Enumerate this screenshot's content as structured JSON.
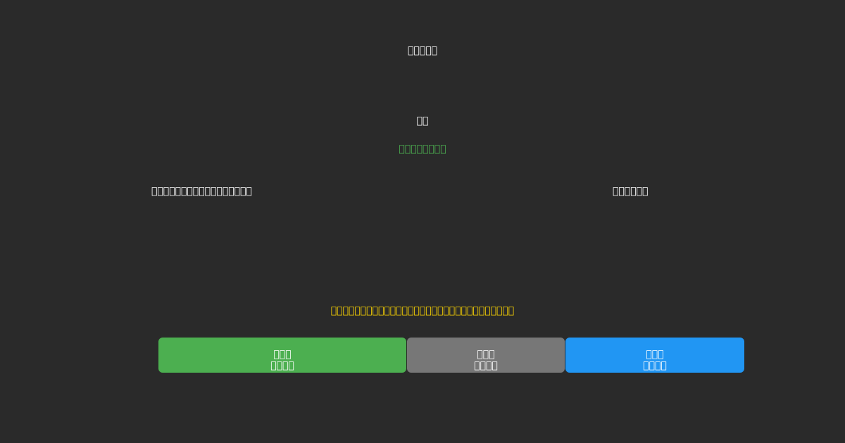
{
  "title": "",
  "heading": "",
  "status": "",
  "info_left": "",
  "info_right": "",
  "notice": "",
  "buttons": [
    {
      "line1": "",
      "line2": "",
      "color": "#4caf50"
    },
    {
      "line1": "",
      "line2": "",
      "color": "#777777"
    },
    {
      "line1": "",
      "line2": "",
      "color": "#2196f3"
    }
  ],
  "colors": {
    "background": "#2a2a2a",
    "status_text": "#4caf50",
    "notice_text": "#ffd700"
  }
}
